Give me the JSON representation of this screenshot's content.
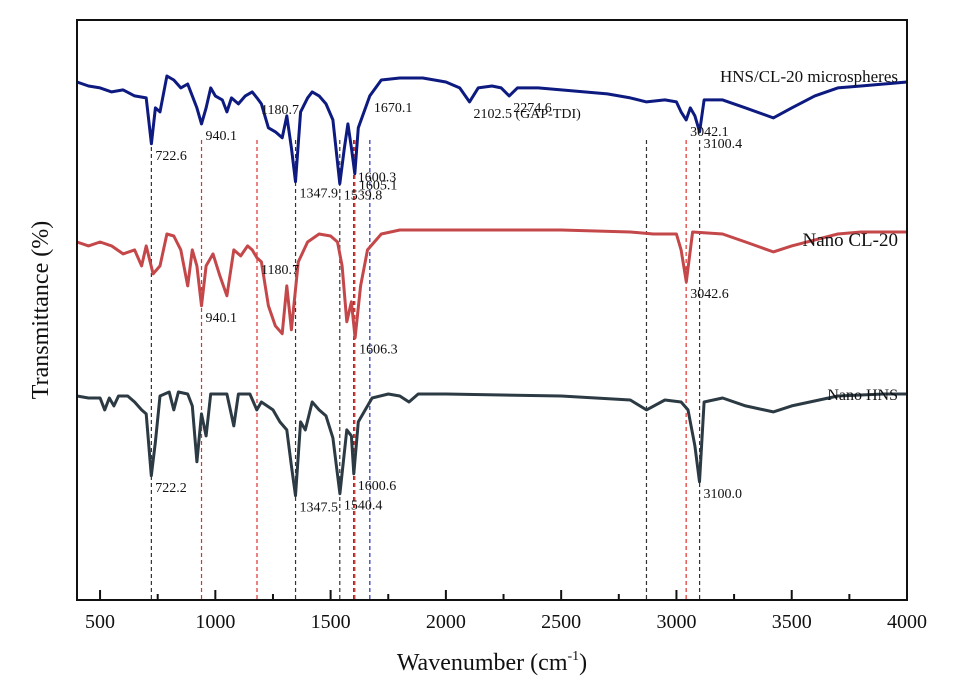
{
  "chart_data": {
    "type": "line",
    "title": "",
    "xlabel": "Wavenumber (cm-1)",
    "xlabel_main": "Wavenumber (cm",
    "xlabel_sup": "-1",
    "xlabel_close": ")",
    "ylabel": "Transmittance (%)",
    "xlim": [
      400,
      4000
    ],
    "x_ticks": [
      500,
      1000,
      1500,
      2000,
      2500,
      3000,
      3500,
      4000
    ],
    "x_tick_labels": [
      "500",
      "1000",
      "1500",
      "2000",
      "2500",
      "3000",
      "3500",
      "4000"
    ],
    "y_ticks_shown": false,
    "grid": false,
    "legend": "inline labels at right of each trace",
    "series": [
      {
        "name": "HNS/CL-20 microspheres",
        "color": "#0d1a80",
        "offset": 2,
        "baseline": 0.92,
        "points": [
          [
            400,
            0.93
          ],
          [
            450,
            0.91
          ],
          [
            500,
            0.9
          ],
          [
            550,
            0.88
          ],
          [
            600,
            0.89
          ],
          [
            650,
            0.86
          ],
          [
            700,
            0.85
          ],
          [
            722.6,
            0.62
          ],
          [
            740,
            0.8
          ],
          [
            760,
            0.78
          ],
          [
            790,
            0.96
          ],
          [
            820,
            0.94
          ],
          [
            850,
            0.9
          ],
          [
            880,
            0.92
          ],
          [
            900,
            0.86
          ],
          [
            920,
            0.8
          ],
          [
            940.1,
            0.72
          ],
          [
            960,
            0.8
          ],
          [
            980,
            0.9
          ],
          [
            1000,
            0.86
          ],
          [
            1030,
            0.84
          ],
          [
            1050,
            0.78
          ],
          [
            1070,
            0.85
          ],
          [
            1100,
            0.82
          ],
          [
            1130,
            0.86
          ],
          [
            1160,
            0.88
          ],
          [
            1180.7,
            0.85
          ],
          [
            1200,
            0.82
          ],
          [
            1230,
            0.7
          ],
          [
            1260,
            0.68
          ],
          [
            1290,
            0.65
          ],
          [
            1310,
            0.76
          ],
          [
            1330,
            0.6
          ],
          [
            1347.9,
            0.43
          ],
          [
            1370,
            0.78
          ],
          [
            1400,
            0.85
          ],
          [
            1420,
            0.88
          ],
          [
            1450,
            0.86
          ],
          [
            1480,
            0.82
          ],
          [
            1510,
            0.74
          ],
          [
            1539.8,
            0.42
          ],
          [
            1560,
            0.6
          ],
          [
            1575,
            0.72
          ],
          [
            1590,
            0.6
          ],
          [
            1605.1,
            0.47
          ],
          [
            1620,
            0.7
          ],
          [
            1670.1,
            0.86
          ],
          [
            1720,
            0.94
          ],
          [
            1800,
            0.95
          ],
          [
            1900,
            0.95
          ],
          [
            2000,
            0.93
          ],
          [
            2060,
            0.9
          ],
          [
            2102.5,
            0.83
          ],
          [
            2140,
            0.9
          ],
          [
            2200,
            0.91
          ],
          [
            2240,
            0.9
          ],
          [
            2274.6,
            0.86
          ],
          [
            2310,
            0.9
          ],
          [
            2400,
            0.9
          ],
          [
            2500,
            0.89
          ],
          [
            2600,
            0.88
          ],
          [
            2700,
            0.87
          ],
          [
            2800,
            0.85
          ],
          [
            2870,
            0.83
          ],
          [
            2950,
            0.84
          ],
          [
            3000,
            0.83
          ],
          [
            3020,
            0.78
          ],
          [
            3042.1,
            0.74
          ],
          [
            3060,
            0.8
          ],
          [
            3080,
            0.76
          ],
          [
            3100.4,
            0.68
          ],
          [
            3120,
            0.84
          ],
          [
            3200,
            0.84
          ],
          [
            3300,
            0.8
          ],
          [
            3420,
            0.75
          ],
          [
            3500,
            0.8
          ],
          [
            3600,
            0.86
          ],
          [
            3700,
            0.9
          ],
          [
            3800,
            0.91
          ],
          [
            3900,
            0.92
          ],
          [
            4000,
            0.93
          ]
        ],
        "annotations": [
          {
            "x": 722.6,
            "label": "722.6"
          },
          {
            "x": 940.1,
            "label": "940.1"
          },
          {
            "x": 1180.7,
            "label": "1180.7"
          },
          {
            "x": 1347.9,
            "label": "1347.9"
          },
          {
            "x": 1539.8,
            "label": "1539.8"
          },
          {
            "x": 1600.3,
            "label": "1600.3"
          },
          {
            "x": 1605.1,
            "label": "1605.1"
          },
          {
            "x": 1670.1,
            "label": "1670.1"
          },
          {
            "x": 2102.5,
            "label": "2102.5 (GAP-TDI)"
          },
          {
            "x": 2274.6,
            "label": "2274.6"
          },
          {
            "x": 3042.1,
            "label": "3042.1"
          },
          {
            "x": 3100.4,
            "label": "3100.4"
          }
        ]
      },
      {
        "name": "Nano CL-20",
        "color": "#c4474a",
        "offset": 1,
        "baseline": 0.95,
        "points": [
          [
            400,
            0.92
          ],
          [
            450,
            0.9
          ],
          [
            500,
            0.92
          ],
          [
            550,
            0.9
          ],
          [
            600,
            0.86
          ],
          [
            650,
            0.88
          ],
          [
            680,
            0.8
          ],
          [
            700,
            0.9
          ],
          [
            730,
            0.76
          ],
          [
            760,
            0.8
          ],
          [
            790,
            0.96
          ],
          [
            820,
            0.95
          ],
          [
            850,
            0.88
          ],
          [
            880,
            0.7
          ],
          [
            900,
            0.88
          ],
          [
            920,
            0.8
          ],
          [
            940.1,
            0.6
          ],
          [
            960,
            0.8
          ],
          [
            990,
            0.86
          ],
          [
            1020,
            0.75
          ],
          [
            1050,
            0.65
          ],
          [
            1080,
            0.88
          ],
          [
            1110,
            0.85
          ],
          [
            1140,
            0.9
          ],
          [
            1160,
            0.88
          ],
          [
            1180.7,
            0.84
          ],
          [
            1200,
            0.82
          ],
          [
            1230,
            0.6
          ],
          [
            1260,
            0.5
          ],
          [
            1290,
            0.46
          ],
          [
            1310,
            0.7
          ],
          [
            1330,
            0.48
          ],
          [
            1360,
            0.82
          ],
          [
            1400,
            0.92
          ],
          [
            1450,
            0.96
          ],
          [
            1500,
            0.95
          ],
          [
            1530,
            0.92
          ],
          [
            1550,
            0.8
          ],
          [
            1570,
            0.52
          ],
          [
            1590,
            0.62
          ],
          [
            1606.3,
            0.44
          ],
          [
            1630,
            0.7
          ],
          [
            1660,
            0.88
          ],
          [
            1720,
            0.96
          ],
          [
            1800,
            0.98
          ],
          [
            2000,
            0.98
          ],
          [
            2500,
            0.98
          ],
          [
            2800,
            0.97
          ],
          [
            2900,
            0.96
          ],
          [
            3000,
            0.96
          ],
          [
            3020,
            0.88
          ],
          [
            3042.6,
            0.72
          ],
          [
            3070,
            0.97
          ],
          [
            3200,
            0.96
          ],
          [
            3300,
            0.92
          ],
          [
            3420,
            0.87
          ],
          [
            3500,
            0.9
          ],
          [
            3700,
            0.96
          ],
          [
            3800,
            0.97
          ],
          [
            4000,
            0.97
          ]
        ],
        "annotations": [
          {
            "x": 940.1,
            "label": "940.1"
          },
          {
            "x": 1180.7,
            "label": "1180.7"
          },
          {
            "x": 1606.3,
            "label": "1606.3"
          },
          {
            "x": 3042.6,
            "label": "3042.6"
          }
        ]
      },
      {
        "name": "Nano HNS",
        "color": "#2c3a44",
        "offset": 0,
        "baseline": 0.95,
        "points": [
          [
            400,
            0.95
          ],
          [
            450,
            0.94
          ],
          [
            500,
            0.94
          ],
          [
            520,
            0.88
          ],
          [
            540,
            0.94
          ],
          [
            560,
            0.9
          ],
          [
            580,
            0.95
          ],
          [
            620,
            0.95
          ],
          [
            650,
            0.92
          ],
          [
            680,
            0.88
          ],
          [
            700,
            0.86
          ],
          [
            722.2,
            0.55
          ],
          [
            740,
            0.72
          ],
          [
            760,
            0.95
          ],
          [
            800,
            0.97
          ],
          [
            820,
            0.88
          ],
          [
            840,
            0.97
          ],
          [
            880,
            0.96
          ],
          [
            900,
            0.9
          ],
          [
            920,
            0.62
          ],
          [
            940,
            0.86
          ],
          [
            960,
            0.75
          ],
          [
            980,
            0.96
          ],
          [
            1050,
            0.96
          ],
          [
            1080,
            0.8
          ],
          [
            1100,
            0.96
          ],
          [
            1150,
            0.96
          ],
          [
            1180,
            0.88
          ],
          [
            1200,
            0.92
          ],
          [
            1250,
            0.88
          ],
          [
            1280,
            0.82
          ],
          [
            1310,
            0.78
          ],
          [
            1330,
            0.6
          ],
          [
            1347.5,
            0.45
          ],
          [
            1370,
            0.82
          ],
          [
            1390,
            0.78
          ],
          [
            1420,
            0.92
          ],
          [
            1450,
            0.88
          ],
          [
            1480,
            0.85
          ],
          [
            1510,
            0.74
          ],
          [
            1540.4,
            0.46
          ],
          [
            1570,
            0.78
          ],
          [
            1590,
            0.75
          ],
          [
            1600.6,
            0.56
          ],
          [
            1620,
            0.82
          ],
          [
            1680,
            0.94
          ],
          [
            1750,
            0.96
          ],
          [
            1800,
            0.95
          ],
          [
            1840,
            0.92
          ],
          [
            1880,
            0.96
          ],
          [
            2000,
            0.96
          ],
          [
            2500,
            0.95
          ],
          [
            2800,
            0.93
          ],
          [
            2870,
            0.88
          ],
          [
            2950,
            0.93
          ],
          [
            3020,
            0.92
          ],
          [
            3050,
            0.88
          ],
          [
            3080,
            0.7
          ],
          [
            3100,
            0.52
          ],
          [
            3120,
            0.92
          ],
          [
            3200,
            0.94
          ],
          [
            3300,
            0.9
          ],
          [
            3420,
            0.87
          ],
          [
            3500,
            0.9
          ],
          [
            3700,
            0.95
          ],
          [
            3900,
            0.96
          ],
          [
            4000,
            0.96
          ]
        ],
        "annotations": [
          {
            "x": 722.2,
            "label": "722.2"
          },
          {
            "x": 1347.5,
            "label": "1347.5"
          },
          {
            "x": 1540.4,
            "label": "1540.4"
          },
          {
            "x": 1600.6,
            "label": "1600.6"
          },
          {
            "x": 3100.0,
            "label": "3100.0"
          }
        ]
      }
    ],
    "reference_lines": [
      {
        "x": 722.6,
        "color": "#333333"
      },
      {
        "x": 940.1,
        "color": "#e0302c"
      },
      {
        "x": 1180.7,
        "color": "#e0302c"
      },
      {
        "x": 1347.9,
        "color": "#333333"
      },
      {
        "x": 1539.8,
        "color": "#333333"
      },
      {
        "x": 1600.3,
        "color": "#333333"
      },
      {
        "x": 1605.1,
        "color": "#e0302c"
      },
      {
        "x": 1670.1,
        "color": "#2230b0"
      },
      {
        "x": 2870,
        "color": "#333333"
      },
      {
        "x": 3042.1,
        "color": "#e0302c"
      },
      {
        "x": 3100.4,
        "color": "#333333"
      }
    ]
  }
}
